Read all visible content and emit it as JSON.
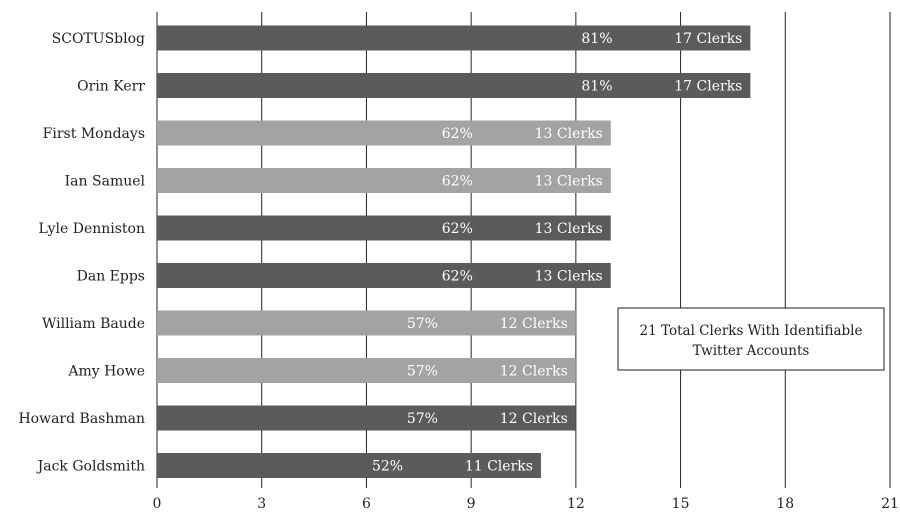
{
  "chart_data": {
    "type": "bar",
    "orientation": "horizontal",
    "categories": [
      "SCOTUSblog",
      "Orin Kerr",
      "First Mondays",
      "Ian Samuel",
      "Lyle Denniston",
      "Dan Epps",
      "William Baude",
      "Amy Howe",
      "Howard Bashman",
      "Jack Goldsmith"
    ],
    "values": [
      17,
      17,
      13,
      13,
      13,
      13,
      12,
      12,
      12,
      11
    ],
    "percent_labels": [
      "81%",
      "81%",
      "62%",
      "62%",
      "62%",
      "62%",
      "57%",
      "57%",
      "57%",
      "52%"
    ],
    "count_labels": [
      "17 Clerks",
      "17 Clerks",
      "13 Clerks",
      "13 Clerks",
      "13 Clerks",
      "13 Clerks",
      "12 Clerks",
      "12 Clerks",
      "12 Clerks",
      "11 Clerks"
    ],
    "bar_colors": [
      "#5b5b5b",
      "#5b5b5b",
      "#a3a3a3",
      "#a3a3a3",
      "#5b5b5b",
      "#5b5b5b",
      "#a3a3a3",
      "#a3a3a3",
      "#5b5b5b",
      "#5b5b5b"
    ],
    "xlim": [
      0,
      21
    ],
    "xticks": [
      0,
      3,
      6,
      9,
      12,
      15,
      18,
      21
    ],
    "xtick_labels": [
      "0",
      "3",
      "6",
      "9",
      "12",
      "15",
      "18",
      "21"
    ],
    "grid": "vertical",
    "annotation": "21 Total Clerks With Identifiable Twitter Accounts",
    "title": "",
    "xlabel": "",
    "ylabel": ""
  }
}
